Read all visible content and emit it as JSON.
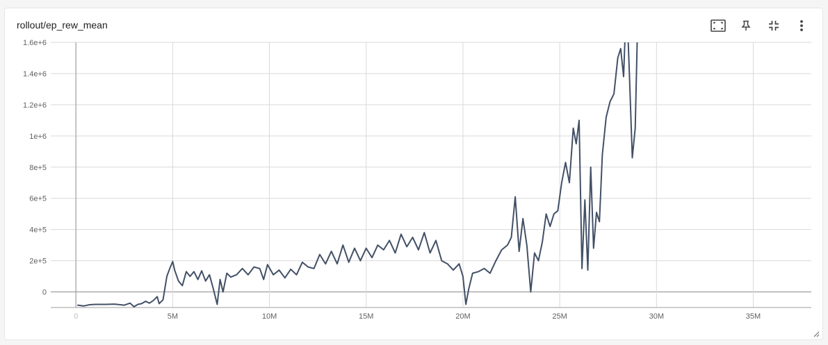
{
  "card": {
    "title": "rollout/ep_rew_mean",
    "toolbar": {
      "icons": [
        "fit-to-data-icon",
        "pin-icon",
        "collapse-icon",
        "more-vert-icon"
      ]
    }
  },
  "colors": {
    "line": "#425066",
    "grid": "#d9d9d9",
    "zero_axis": "#9e9e9e",
    "tick_text": "#616161"
  },
  "chart_data": {
    "type": "line",
    "title": "rollout/ep_rew_mean",
    "xlabel": "",
    "ylabel": "",
    "xlim": [
      -1300000,
      38000000
    ],
    "ylim": [
      -100000,
      1600000
    ],
    "x_ticks": [
      0,
      5000000,
      10000000,
      15000000,
      20000000,
      25000000,
      30000000,
      35000000
    ],
    "x_tick_labels": [
      "0",
      "5M",
      "10M",
      "15M",
      "20M",
      "25M",
      "30M",
      "35M"
    ],
    "y_ticks": [
      0,
      200000,
      400000,
      600000,
      800000,
      1000000,
      1200000,
      1400000,
      1600000
    ],
    "y_tick_labels": [
      "0",
      "2e+5",
      "4e+5",
      "6e+5",
      "8e+5",
      "1e+6",
      "1.2e+6",
      "1.4e+6",
      "1.6e+6"
    ],
    "grid": true,
    "legend": "none",
    "series": [
      {
        "x": [
          100000,
          400000,
          700000,
          1000000,
          1500000,
          2000000,
          2500000,
          2800000,
          3000000,
          3200000,
          3400000,
          3600000,
          3800000,
          4000000,
          4200000,
          4300000,
          4500000,
          4700000,
          4850000,
          5000000,
          5100000,
          5300000,
          5500000,
          5700000,
          5900000,
          6100000,
          6300000,
          6500000,
          6700000,
          6900000,
          7100000,
          7300000,
          7450000,
          7600000,
          7800000,
          8000000,
          8300000,
          8600000,
          8900000,
          9200000,
          9500000,
          9700000,
          9900000,
          10200000,
          10500000,
          10800000,
          11100000,
          11400000,
          11700000,
          12000000,
          12300000,
          12600000,
          12900000,
          13200000,
          13500000,
          13800000,
          14100000,
          14400000,
          14700000,
          15000000,
          15300000,
          15600000,
          15900000,
          16200000,
          16500000,
          16800000,
          17100000,
          17400000,
          17700000,
          18000000,
          18300000,
          18600000,
          18900000,
          19200000,
          19500000,
          19800000,
          20000000,
          20150000,
          20300000,
          20500000,
          20800000,
          21100000,
          21400000,
          21700000,
          22000000,
          22300000,
          22500000,
          22700000,
          22900000,
          23100000,
          23300000,
          23500000,
          23700000,
          23900000,
          24100000,
          24300000,
          24500000,
          24700000,
          24900000,
          25100000,
          25300000,
          25500000,
          25700000,
          25850000,
          26000000,
          26150000,
          26300000,
          26450000,
          26600000,
          26750000,
          26900000,
          27050000,
          27200000,
          27400000,
          27600000,
          27800000,
          28000000,
          28150000,
          28300000,
          28450000,
          28600000,
          28750000,
          28900000,
          29000000
        ],
        "values": [
          -85000,
          -90000,
          -82000,
          -80000,
          -80000,
          -78000,
          -85000,
          -72000,
          -95000,
          -80000,
          -75000,
          -60000,
          -72000,
          -55000,
          -30000,
          -75000,
          -50000,
          100000,
          150000,
          195000,
          140000,
          70000,
          40000,
          130000,
          100000,
          130000,
          80000,
          135000,
          70000,
          110000,
          20000,
          -80000,
          80000,
          0,
          120000,
          95000,
          110000,
          150000,
          110000,
          160000,
          150000,
          80000,
          175000,
          110000,
          140000,
          90000,
          145000,
          110000,
          190000,
          160000,
          150000,
          240000,
          180000,
          260000,
          180000,
          300000,
          190000,
          280000,
          200000,
          280000,
          220000,
          300000,
          270000,
          330000,
          250000,
          370000,
          290000,
          350000,
          270000,
          380000,
          250000,
          330000,
          200000,
          180000,
          140000,
          180000,
          100000,
          -80000,
          20000,
          120000,
          130000,
          150000,
          120000,
          200000,
          270000,
          300000,
          350000,
          610000,
          260000,
          470000,
          300000,
          0,
          250000,
          200000,
          320000,
          500000,
          420000,
          500000,
          520000,
          700000,
          830000,
          700000,
          1050000,
          950000,
          1100000,
          150000,
          590000,
          140000,
          800000,
          280000,
          510000,
          450000,
          880000,
          1120000,
          1220000,
          1270000,
          1500000,
          1560000,
          1380000,
          1900000,
          1400000,
          860000,
          1050000,
          1600000
        ]
      }
    ]
  }
}
